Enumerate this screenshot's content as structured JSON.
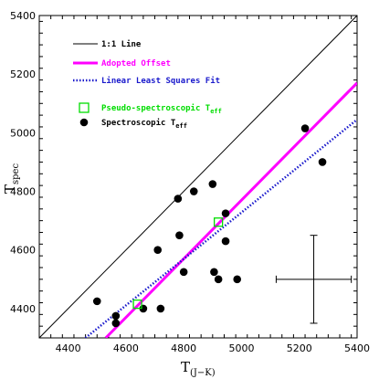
{
  "chart_data": {
    "type": "scatter",
    "xlabel": "T",
    "xlabel_sub": "(J−K)",
    "ylabel": "T",
    "ylabel_sub": "spec",
    "xlim": [
      4300,
      5400
    ],
    "ylim": [
      4300,
      5400
    ],
    "x_ticks": [
      4400,
      4600,
      4800,
      5000,
      5200,
      5400
    ],
    "y_ticks": [
      4400,
      4600,
      4800,
      5000,
      5200,
      5400
    ],
    "legend": {
      "position": "top-left",
      "entries": [
        {
          "label": "1:1 Line",
          "color": "#000000",
          "style": "solid-line"
        },
        {
          "label": "Adopted Offset",
          "color": "#ff00ff",
          "style": "thick-line"
        },
        {
          "label": "Linear Least Squares Fit",
          "color": "#1a1acc",
          "style": "dotted-line"
        },
        {
          "label": "Pseudo-spectroscopic T",
          "sub": "eff",
          "color": "#00dd00",
          "style": "open-square"
        },
        {
          "label": "Spectroscopic T",
          "sub": "eff",
          "color": "#000000",
          "style": "filled-circle"
        }
      ]
    },
    "lines": [
      {
        "name": "1:1 Line",
        "points": [
          [
            4300,
            4300
          ],
          [
            5400,
            5400
          ]
        ],
        "color": "#000000"
      },
      {
        "name": "Adopted Offset",
        "points": [
          [
            4530,
            4300
          ],
          [
            5400,
            5170
          ]
        ],
        "color": "#ff00ff"
      },
      {
        "name": "Linear Least Squares Fit",
        "points": [
          [
            4460,
            4300
          ],
          [
            5400,
            5045
          ]
        ],
        "color": "#1a1acc"
      }
    ],
    "series": [
      {
        "name": "Spectroscopic Teff",
        "marker": "filled-circle",
        "color": "#000000",
        "points": [
          {
            "x": 4500,
            "y": 4425
          },
          {
            "x": 4565,
            "y": 4375
          },
          {
            "x": 4565,
            "y": 4350
          },
          {
            "x": 4660,
            "y": 4400
          },
          {
            "x": 4720,
            "y": 4400
          },
          {
            "x": 4710,
            "y": 4600
          },
          {
            "x": 4780,
            "y": 4775
          },
          {
            "x": 4835,
            "y": 4800
          },
          {
            "x": 4785,
            "y": 4650
          },
          {
            "x": 4800,
            "y": 4525
          },
          {
            "x": 4900,
            "y": 4825
          },
          {
            "x": 4905,
            "y": 4525
          },
          {
            "x": 4920,
            "y": 4500
          },
          {
            "x": 4945,
            "y": 4725
          },
          {
            "x": 4945,
            "y": 4630
          },
          {
            "x": 4985,
            "y": 4500
          },
          {
            "x": 5220,
            "y": 5015
          },
          {
            "x": 5280,
            "y": 4900
          }
        ]
      },
      {
        "name": "Pseudo-spectroscopic Teff",
        "marker": "open-square",
        "color": "#00dd00",
        "points": [
          {
            "x": 4640,
            "y": 4415
          },
          {
            "x": 4920,
            "y": 4695
          }
        ]
      }
    ],
    "error_bar": {
      "x": 5250,
      "y": 4500,
      "x_err": 130,
      "y_err": 150
    }
  }
}
